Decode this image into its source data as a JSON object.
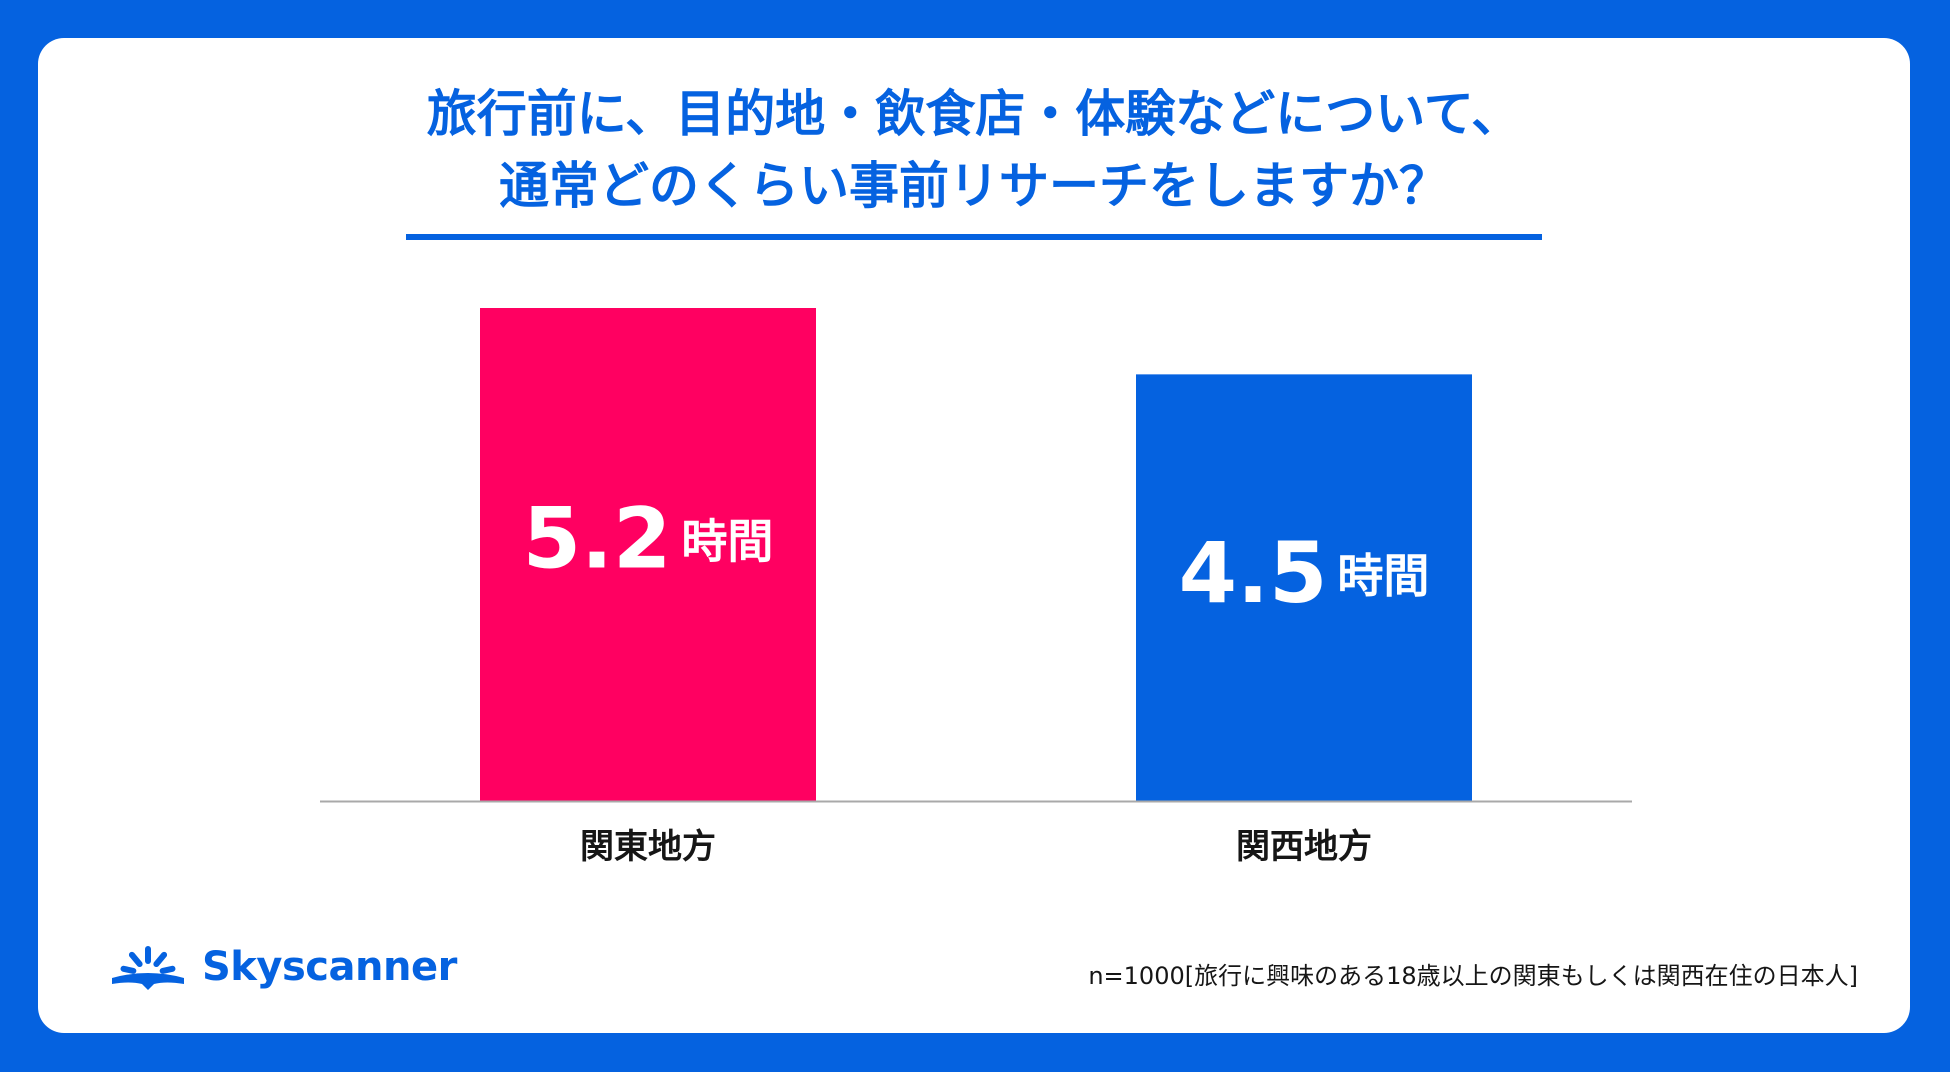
{
  "title": {
    "line1": "旅行前に、目的地・飲食店・体験などについて、",
    "line2": "通常どのくらい事前リサーチをしますか？"
  },
  "chart_data": {
    "type": "bar",
    "categories": [
      "関東地方",
      "関西地方"
    ],
    "values": [
      5.2,
      4.5
    ],
    "value_labels": [
      "5.2",
      "4.5"
    ],
    "unit": "時間",
    "colors": [
      "#ff0061",
      "#0562e0"
    ],
    "ylim": [
      0,
      5.2
    ],
    "grid": false
  },
  "footnote": "n=1000[旅行に興味のある18歳以上の関東もしくは関西在住の日本人]",
  "brand": {
    "name": "Skyscanner",
    "icon": "skyscanner-sunrise-icon",
    "color": "#0562e0"
  }
}
